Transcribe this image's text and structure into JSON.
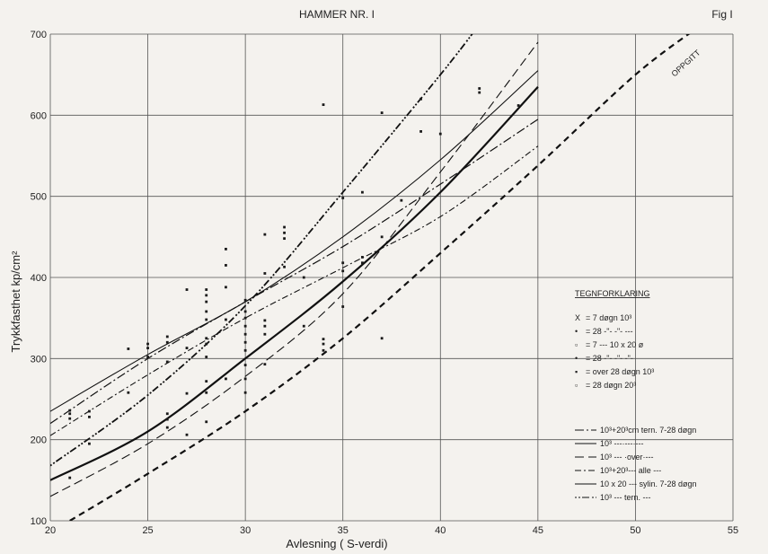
{
  "chart_data": {
    "type": "scatter",
    "title": "HAMMER NR. I",
    "fig_label": "Fig I",
    "xlabel": "Avlesning ( S-verdi)",
    "ylabel": "Trykkfasthet  kp/cm²",
    "xlim": [
      20,
      55
    ],
    "ylim": [
      100,
      700
    ],
    "x_ticks": [
      20,
      25,
      30,
      35,
      40,
      45,
      50,
      55
    ],
    "x_tick_labels": [
      "20",
      "25",
      "30",
      "35",
      "40",
      "45",
      "50",
      "55"
    ],
    "y_ticks": [
      100,
      200,
      300,
      400,
      500,
      600,
      700
    ],
    "grid": true,
    "oppgitt_label": "OPPGITT",
    "legend_title": "TEGNFORKLARING",
    "marker_legend": [
      {
        "symbol": "X",
        "text": "= 7 døgn  10³"
      },
      {
        "symbol": "•",
        "text": "= 28 -\"- -\"-  ---"
      },
      {
        "symbol": "▫",
        "text": "= 7  ---   10 x 20 ø"
      },
      {
        "symbol": "•",
        "text": "= 28 -\"- -\"-   -\"-"
      },
      {
        "symbol": "▪",
        "text": "= over  28 døgn 10³"
      },
      {
        "symbol": "▫",
        "text": "= 28 døgn  20³"
      }
    ],
    "line_legend": [
      {
        "label": "10³+20³cm tern. 7-28 døgn",
        "dash": "10 3 2 3"
      },
      {
        "label": "10³    ---·---·---",
        "dash": ""
      },
      {
        "label": "10³    --- ·over·---",
        "dash": "10 5"
      },
      {
        "label": "10³+20³--- alle ---",
        "dash": "7 3 2 3"
      },
      {
        "label": "10 x 20 --- sylin. 7-28 døgn",
        "dash": ""
      },
      {
        "label": "10³    --- tern.  ---",
        "dash": "2 2 2 2 8 3"
      }
    ],
    "series": [
      {
        "name": "OPPGITT",
        "style": "oppgitt",
        "dash": "7 5",
        "width": 2.2,
        "x": [
          21,
          25,
          30,
          35,
          40,
          45,
          50,
          53.3
        ],
        "y": [
          100,
          158,
          235,
          325,
          430,
          538,
          650,
          710
        ]
      },
      {
        "style": "thick",
        "dash": "",
        "width": 2.2,
        "x": [
          20,
          25,
          30,
          35,
          40,
          45
        ],
        "y": [
          150,
          210,
          300,
          395,
          505,
          635
        ]
      },
      {
        "style": "dashdot-long",
        "dash": "10 3 2 3",
        "width": 1.2,
        "x": [
          20,
          25,
          30,
          35,
          40,
          45
        ],
        "y": [
          220,
          300,
          370,
          438,
          515,
          595
        ]
      },
      {
        "style": "solid-thin",
        "dash": "",
        "width": 1.1,
        "x": [
          20,
          25,
          30,
          35,
          40,
          45
        ],
        "y": [
          235,
          305,
          370,
          450,
          545,
          655
        ]
      },
      {
        "style": "dashed-long",
        "dash": "10 5",
        "width": 1.1,
        "x": [
          20,
          25,
          30,
          35,
          40,
          45
        ],
        "y": [
          130,
          195,
          278,
          380,
          530,
          690
        ]
      },
      {
        "style": "dashdot-thin",
        "dash": "7 3 2 3",
        "width": 1.1,
        "x": [
          20,
          25,
          30,
          35,
          40,
          45
        ],
        "y": [
          205,
          280,
          350,
          412,
          475,
          562
        ]
      },
      {
        "style": "dotted-heavy",
        "dash": "2 2 2 2 8 3",
        "width": 1.8,
        "x": [
          20,
          25,
          30,
          35,
          40,
          42
        ],
        "y": [
          168,
          255,
          365,
          505,
          650,
          712
        ]
      }
    ],
    "points": [
      {
        "x": 21,
        "y": 236
      },
      {
        "x": 21,
        "y": 232
      },
      {
        "x": 21,
        "y": 226
      },
      {
        "x": 22,
        "y": 235
      },
      {
        "x": 22,
        "y": 228
      },
      {
        "x": 22,
        "y": 195
      },
      {
        "x": 21,
        "y": 153
      },
      {
        "x": 24,
        "y": 312
      },
      {
        "x": 24,
        "y": 258
      },
      {
        "x": 25,
        "y": 318
      },
      {
        "x": 25,
        "y": 313
      },
      {
        "x": 25,
        "y": 302
      },
      {
        "x": 26,
        "y": 327
      },
      {
        "x": 26,
        "y": 320
      },
      {
        "x": 26,
        "y": 296
      },
      {
        "x": 26,
        "y": 232
      },
      {
        "x": 26,
        "y": 225
      },
      {
        "x": 26,
        "y": 215
      },
      {
        "x": 27,
        "y": 385
      },
      {
        "x": 27,
        "y": 313
      },
      {
        "x": 27,
        "y": 257
      },
      {
        "x": 27,
        "y": 206
      },
      {
        "x": 28,
        "y": 385
      },
      {
        "x": 28,
        "y": 378
      },
      {
        "x": 28,
        "y": 370
      },
      {
        "x": 28,
        "y": 358
      },
      {
        "x": 28,
        "y": 348
      },
      {
        "x": 28,
        "y": 325
      },
      {
        "x": 28,
        "y": 318
      },
      {
        "x": 28,
        "y": 302
      },
      {
        "x": 28,
        "y": 272
      },
      {
        "x": 28,
        "y": 258
      },
      {
        "x": 28,
        "y": 222
      },
      {
        "x": 29,
        "y": 435
      },
      {
        "x": 29,
        "y": 415
      },
      {
        "x": 29,
        "y": 388
      },
      {
        "x": 29,
        "y": 348
      },
      {
        "x": 29,
        "y": 275
      },
      {
        "x": 30,
        "y": 372
      },
      {
        "x": 30,
        "y": 358
      },
      {
        "x": 30,
        "y": 350
      },
      {
        "x": 30,
        "y": 340
      },
      {
        "x": 30,
        "y": 330
      },
      {
        "x": 30,
        "y": 320
      },
      {
        "x": 30,
        "y": 310
      },
      {
        "x": 30,
        "y": 292
      },
      {
        "x": 30,
        "y": 275
      },
      {
        "x": 30,
        "y": 258
      },
      {
        "x": 31,
        "y": 347
      },
      {
        "x": 31,
        "y": 340
      },
      {
        "x": 31,
        "y": 330
      },
      {
        "x": 31,
        "y": 453
      },
      {
        "x": 31,
        "y": 405
      },
      {
        "x": 31,
        "y": 293
      },
      {
        "x": 32,
        "y": 462
      },
      {
        "x": 32,
        "y": 455
      },
      {
        "x": 32,
        "y": 448
      },
      {
        "x": 32,
        "y": 413
      },
      {
        "x": 33,
        "y": 400
      },
      {
        "x": 33,
        "y": 340
      },
      {
        "x": 34,
        "y": 613
      },
      {
        "x": 34,
        "y": 324
      },
      {
        "x": 34,
        "y": 318
      },
      {
        "x": 34,
        "y": 310
      },
      {
        "x": 35,
        "y": 498
      },
      {
        "x": 35,
        "y": 418
      },
      {
        "x": 35,
        "y": 408
      },
      {
        "x": 35,
        "y": 364
      },
      {
        "x": 36,
        "y": 425
      },
      {
        "x": 36,
        "y": 418
      },
      {
        "x": 36,
        "y": 505
      },
      {
        "x": 37,
        "y": 603
      },
      {
        "x": 37,
        "y": 450
      },
      {
        "x": 37,
        "y": 325
      },
      {
        "x": 38,
        "y": 495
      },
      {
        "x": 39,
        "y": 620
      },
      {
        "x": 39,
        "y": 580
      },
      {
        "x": 40,
        "y": 577
      },
      {
        "x": 42,
        "y": 633
      },
      {
        "x": 42,
        "y": 628
      },
      {
        "x": 44,
        "y": 612
      }
    ]
  }
}
